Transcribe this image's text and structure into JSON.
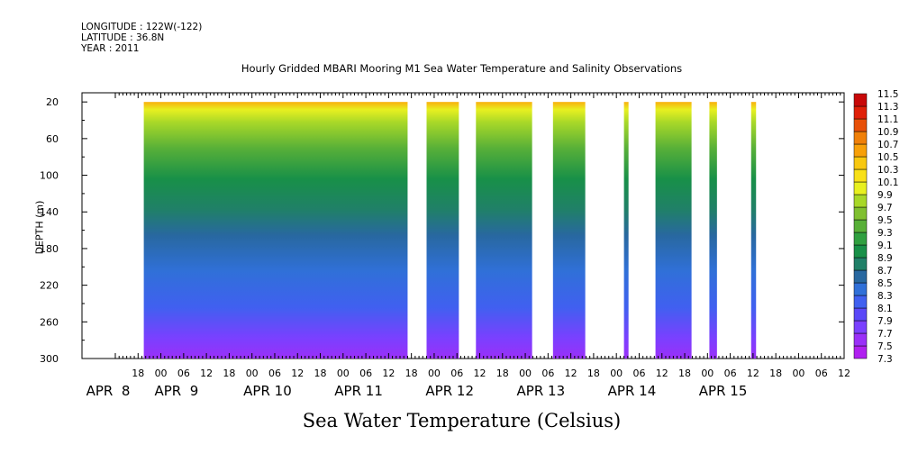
{
  "header": {
    "longitude": "LONGITUDE : 122W(-122)",
    "latitude": "LATITUDE : 36.8N",
    "year": "YEAR : 2011"
  },
  "chart_data": {
    "type": "heatmap",
    "title": "Hourly Gridded MBARI Mooring M1 Sea Water Temperature and Salinity Observations",
    "xlabel": "Sea Water Temperature (Celsius)",
    "ylabel": "DEPTH (m)",
    "ylim": [
      300,
      0
    ],
    "y_ticks": [
      20,
      60,
      100,
      140,
      180,
      220,
      260,
      300
    ],
    "x_unit": "hours since APR 7 12:00",
    "xlim": [
      0,
      192
    ],
    "hour_ticks": [
      {
        "t": 6,
        "label": "18"
      },
      {
        "t": 12,
        "label": "00"
      },
      {
        "t": 18,
        "label": "06"
      },
      {
        "t": 24,
        "label": "12"
      },
      {
        "t": 30,
        "label": "18"
      },
      {
        "t": 36,
        "label": "00"
      },
      {
        "t": 42,
        "label": "06"
      },
      {
        "t": 48,
        "label": "12"
      },
      {
        "t": 54,
        "label": "18"
      },
      {
        "t": 60,
        "label": "00"
      },
      {
        "t": 66,
        "label": "06"
      },
      {
        "t": 72,
        "label": "12"
      },
      {
        "t": 78,
        "label": "18"
      },
      {
        "t": 84,
        "label": "00"
      },
      {
        "t": 90,
        "label": "06"
      },
      {
        "t": 96,
        "label": "12"
      },
      {
        "t": 102,
        "label": "18"
      },
      {
        "t": 108,
        "label": "00"
      },
      {
        "t": 114,
        "label": "06"
      },
      {
        "t": 120,
        "label": "12"
      },
      {
        "t": 126,
        "label": "18"
      },
      {
        "t": 132,
        "label": "00"
      },
      {
        "t": 138,
        "label": "06"
      },
      {
        "t": 144,
        "label": "12"
      },
      {
        "t": 150,
        "label": "18"
      },
      {
        "t": 156,
        "label": "00"
      },
      {
        "t": 162,
        "label": "06"
      },
      {
        "t": 168,
        "label": "12"
      },
      {
        "t": 174,
        "label": "18"
      },
      {
        "t": 180,
        "label": "00"
      },
      {
        "t": 186,
        "label": "06"
      },
      {
        "t": 192,
        "label": "12"
      }
    ],
    "day_labels": [
      {
        "t": 0,
        "label": "APR  8"
      },
      {
        "t": 18,
        "label": "APR  9"
      },
      {
        "t": 42,
        "label": "APR 10"
      },
      {
        "t": 66,
        "label": "APR 11"
      },
      {
        "t": 90,
        "label": "APR 12"
      },
      {
        "t": 114,
        "label": "APR 13"
      },
      {
        "t": 138,
        "label": "APR 14"
      },
      {
        "t": 162,
        "label": "APR 15"
      }
    ],
    "data_segments": [
      {
        "start": 7.5,
        "end": 77.0
      },
      {
        "start": 82.0,
        "end": 90.5
      },
      {
        "start": 95.0,
        "end": 109.8
      },
      {
        "start": 115.3,
        "end": 123.8
      },
      {
        "start": 134.0,
        "end": 135.2
      },
      {
        "start": 142.3,
        "end": 151.8
      },
      {
        "start": 156.5,
        "end": 158.5
      },
      {
        "start": 167.5,
        "end": 168.8
      }
    ],
    "legend": {
      "values": [
        7.3,
        7.5,
        7.7,
        7.9,
        8.1,
        8.3,
        8.5,
        8.7,
        8.9,
        9.1,
        9.3,
        9.5,
        9.7,
        9.9,
        10.1,
        10.3,
        10.5,
        10.7,
        10.9,
        11.1,
        11.3,
        11.5
      ],
      "colors": [
        "#b020f0",
        "#9a30f8",
        "#7a40ff",
        "#5a48f8",
        "#4060f0",
        "#3070d8",
        "#2868a0",
        "#208068",
        "#189048",
        "#30a040",
        "#58b038",
        "#80c030",
        "#a8d828",
        "#e8f020",
        "#f8e018",
        "#f8c810",
        "#f8a008",
        "#f08008",
        "#e85008",
        "#e02008",
        "#c80808",
        "#900808"
      ]
    }
  }
}
